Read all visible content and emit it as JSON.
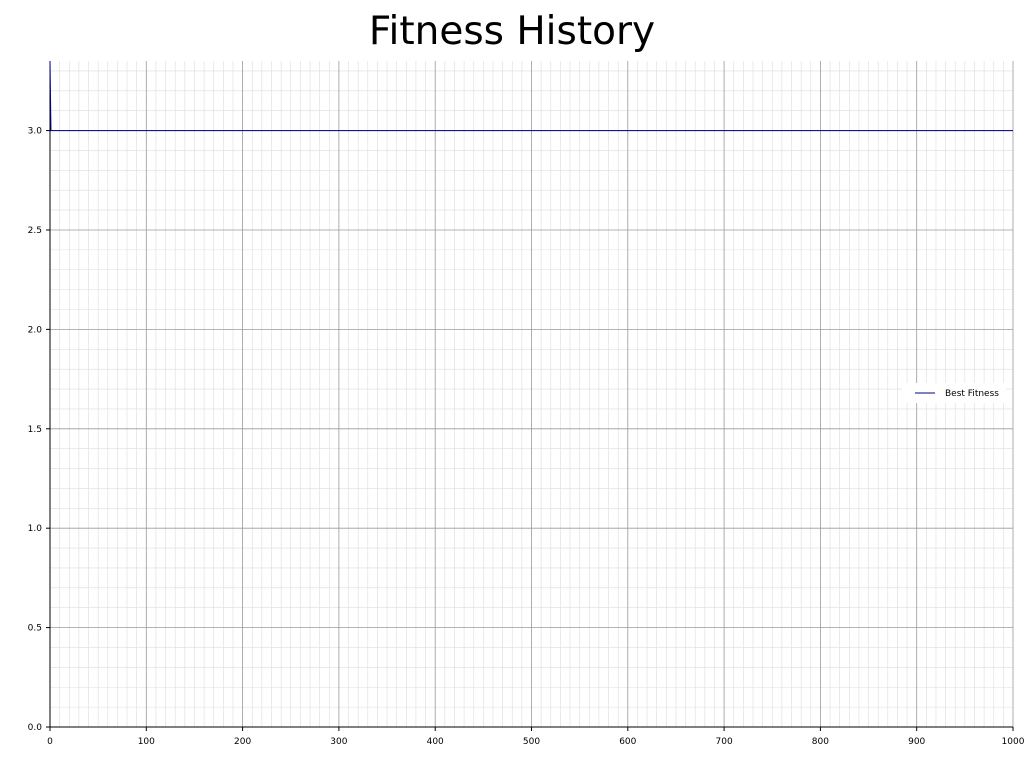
{
  "chart_data": {
    "type": "line",
    "title": "Fitness History",
    "xlabel": "",
    "ylabel": "",
    "xlim": [
      0,
      1000
    ],
    "ylim": [
      0,
      3.35
    ],
    "x_ticks": [
      0,
      100,
      200,
      300,
      400,
      500,
      600,
      700,
      800,
      900,
      1000
    ],
    "y_ticks": [
      0.0,
      0.5,
      1.0,
      1.5,
      2.0,
      2.5,
      3.0
    ],
    "grid": true,
    "legend_position": "right",
    "series": [
      {
        "name": "Best Fitness",
        "color": "#00008b",
        "x": [
          0,
          1,
          2,
          1000
        ],
        "y": [
          3.35,
          3.0,
          3.0,
          3.0
        ]
      }
    ]
  },
  "colors": {
    "major_grid": "#9a9a9a",
    "minor_grid": "#dddddd",
    "axis": "#000000"
  }
}
